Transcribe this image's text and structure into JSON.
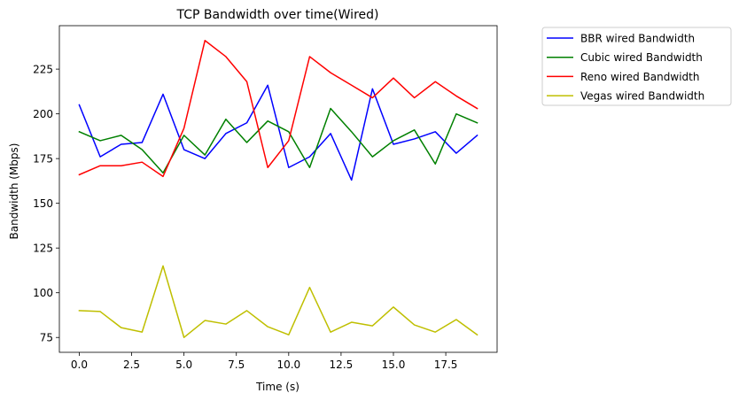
{
  "chart_data": {
    "type": "line",
    "title": "TCP Bandwidth over time(Wired)",
    "xlabel": "Time (s)",
    "ylabel": "Bandwidth (Mbps)",
    "xlim": [
      -0.95,
      19.95
    ],
    "ylim": [
      66.7,
      249.3
    ],
    "xticks": [
      0,
      2.5,
      5,
      7.5,
      10,
      12.5,
      15,
      17.5
    ],
    "xtick_labels": [
      "0.0",
      "2.5",
      "5.0",
      "7.5",
      "10.0",
      "12.5",
      "15.0",
      "17.5"
    ],
    "yticks": [
      75,
      100,
      125,
      150,
      175,
      200,
      225
    ],
    "ytick_labels": [
      "75",
      "100",
      "125",
      "150",
      "175",
      "200",
      "225"
    ],
    "grid": false,
    "legend_position": "outside-upper-right",
    "x": [
      0,
      1,
      2,
      3,
      4,
      5,
      6,
      7,
      8,
      9,
      10,
      11,
      12,
      13,
      14,
      15,
      16,
      17,
      18,
      19
    ],
    "series": [
      {
        "name": "BBR wired Bandwidth",
        "color": "#0000ff",
        "values": [
          205,
          176,
          183,
          184,
          211,
          180,
          175,
          189,
          195,
          216,
          170,
          176,
          189,
          163,
          214,
          183,
          186,
          190,
          178,
          188
        ]
      },
      {
        "name": "Cubic wired Bandwidth",
        "color": "#008000",
        "values": [
          190,
          185,
          188,
          180,
          167,
          188,
          177,
          197,
          184,
          196,
          190,
          170,
          203,
          190,
          176,
          185,
          191,
          172,
          200,
          195
        ]
      },
      {
        "name": "Reno wired Bandwidth",
        "color": "#ff0000",
        "values": [
          166,
          171,
          171,
          173,
          165,
          192,
          241,
          232,
          218,
          170,
          185,
          232,
          223,
          216,
          209,
          220,
          209,
          218,
          210,
          203
        ]
      },
      {
        "name": "Vegas wired Bandwidth",
        "color": "#bfbf00",
        "values": [
          90,
          89.5,
          80.5,
          78,
          115,
          75,
          84.5,
          82.5,
          90,
          81,
          76.5,
          103,
          78,
          83.5,
          81.5,
          92,
          82,
          78,
          85,
          76.5
        ]
      }
    ]
  }
}
